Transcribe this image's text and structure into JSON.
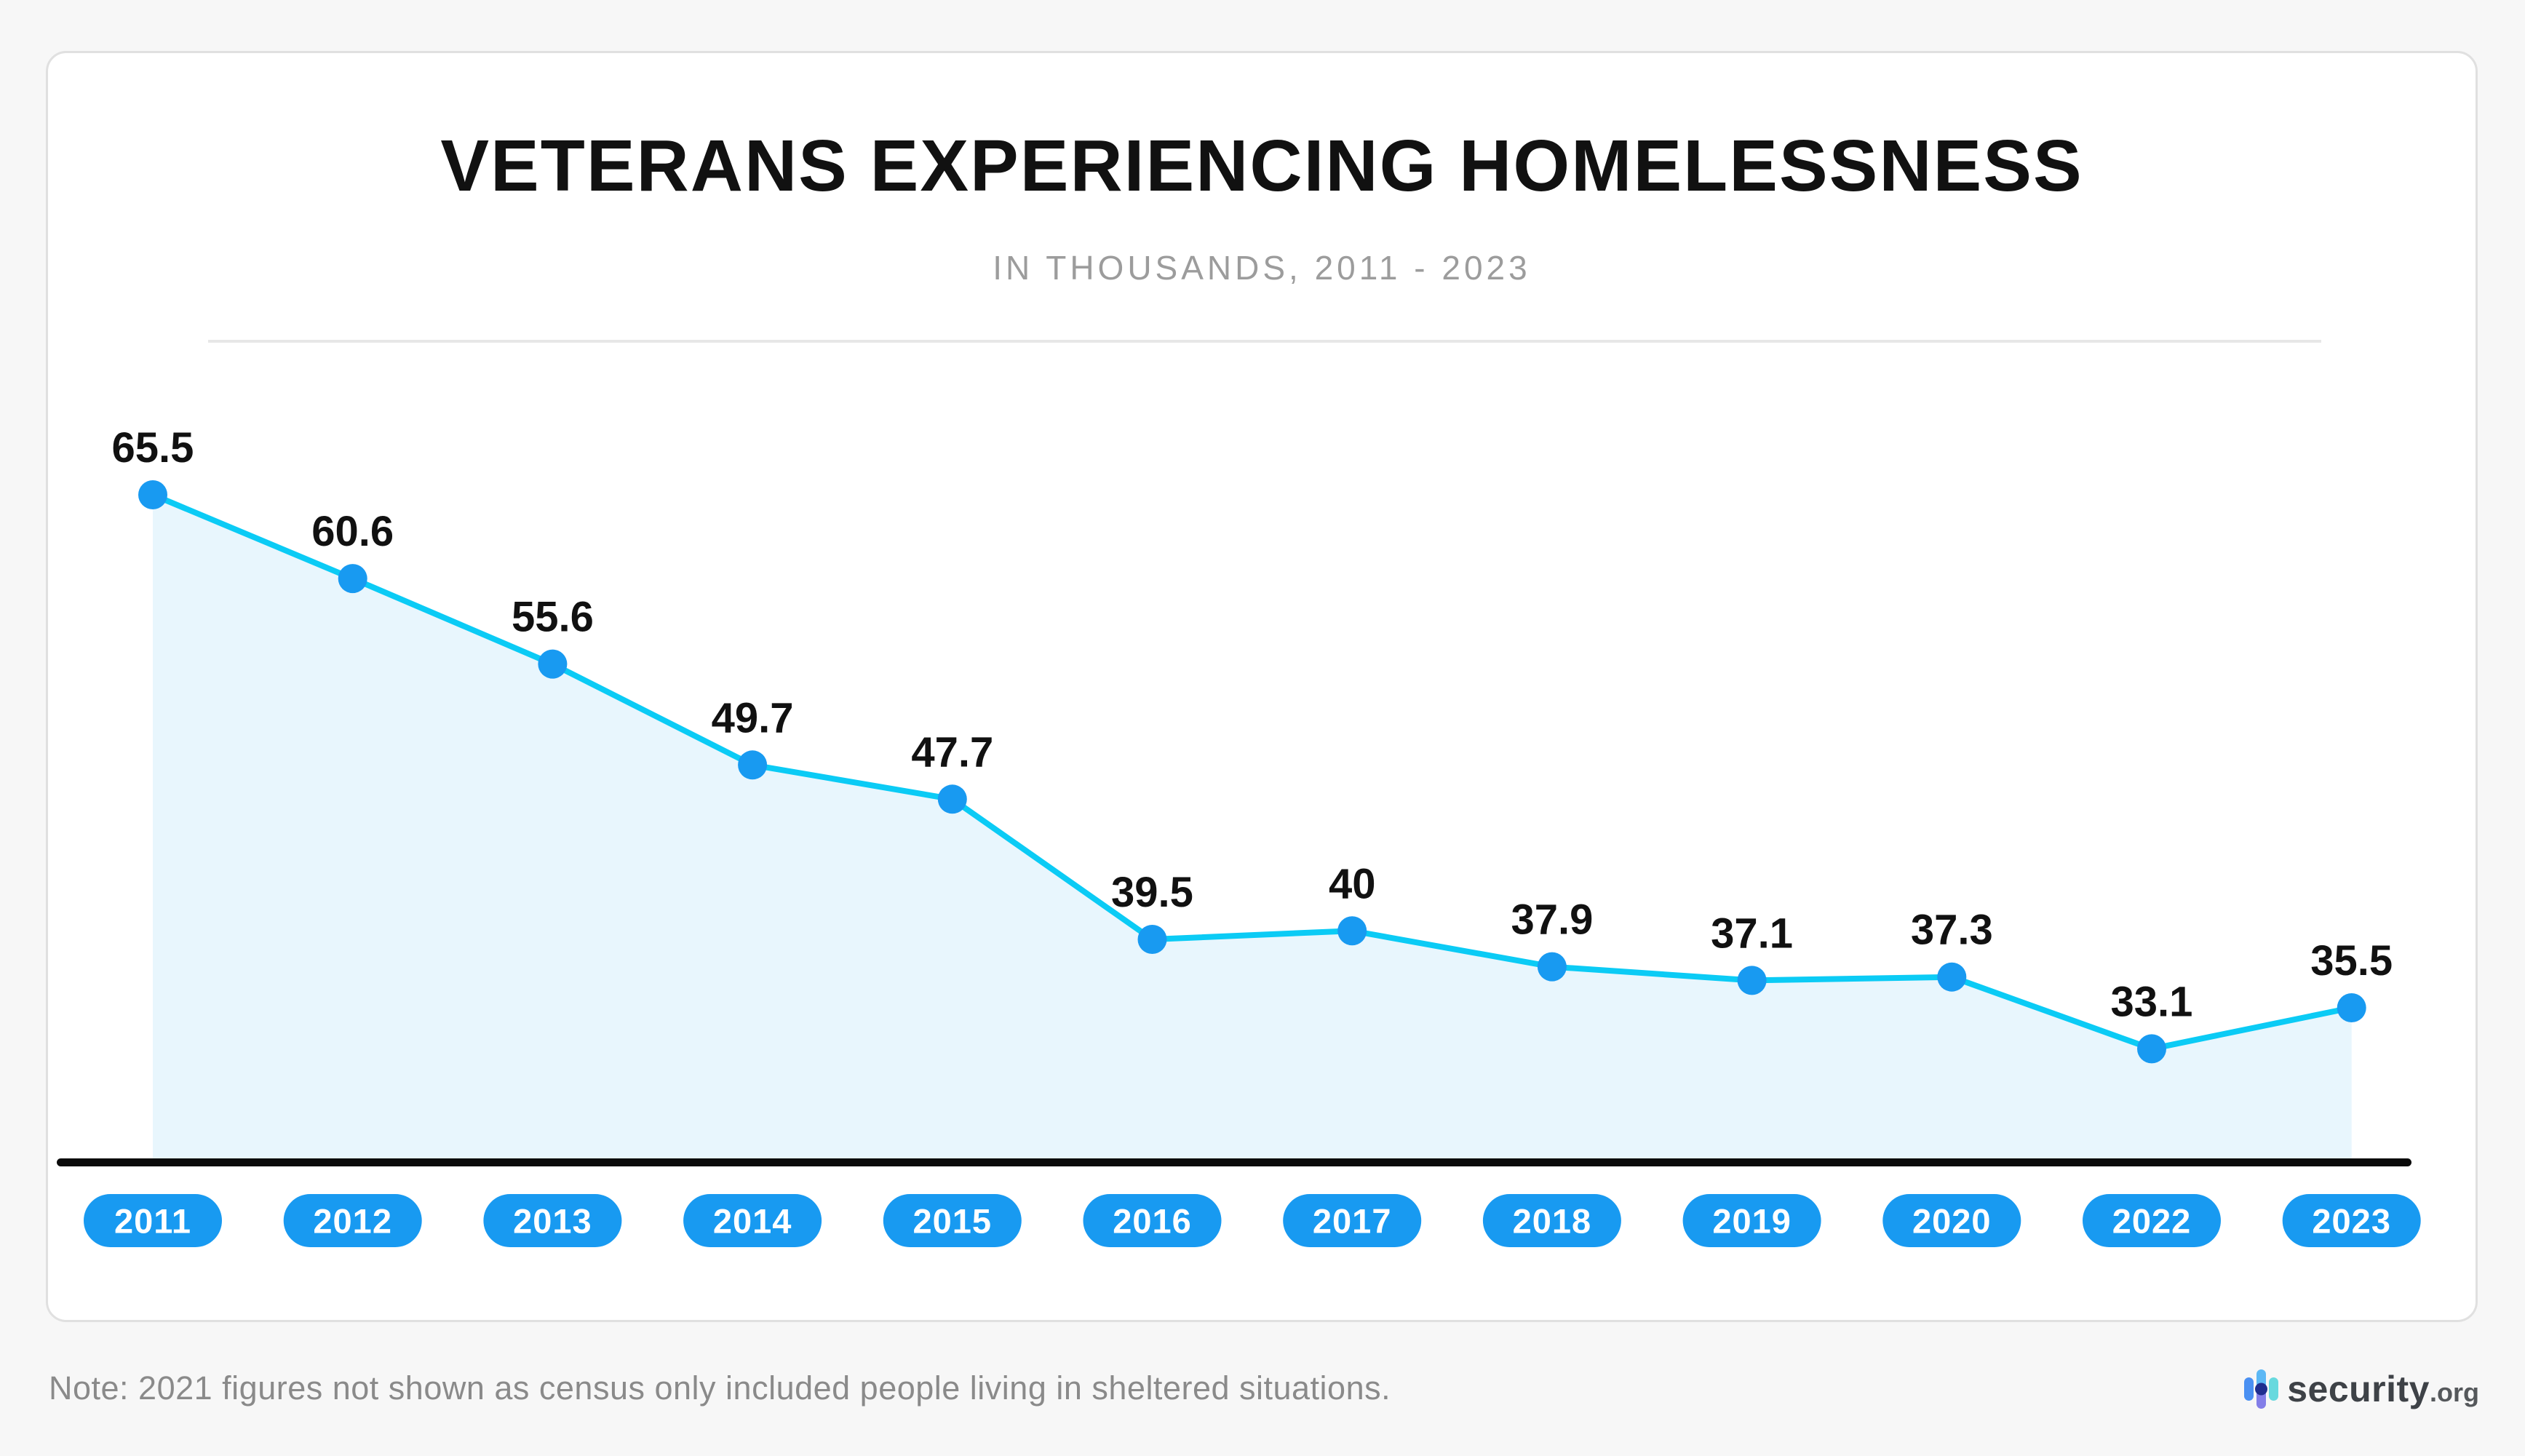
{
  "page": {
    "background": "#f7f7f7"
  },
  "header": {
    "title": "VETERANS EXPERIENCING HOMELESSNESS",
    "subtitle": "IN THOUSANDS, 2011 - 2023"
  },
  "note": "Note: 2021 figures not shown as census only included people living in sheltered situations.",
  "branding": {
    "name": "security",
    "tld": ".org"
  },
  "chart_data": {
    "type": "area",
    "title": "VETERANS EXPERIENCING HOMELESSNESS",
    "subtitle": "IN THOUSANDS, 2011 - 2023",
    "categories": [
      "2011",
      "2012",
      "2013",
      "2014",
      "2015",
      "2016",
      "2017",
      "2018",
      "2019",
      "2020",
      "2022",
      "2023"
    ],
    "values": [
      65.5,
      60.6,
      55.6,
      49.7,
      47.7,
      39.5,
      40,
      37.9,
      37.1,
      37.3,
      33.1,
      35.5
    ],
    "xlabel": "",
    "ylabel": "",
    "grid": false,
    "legend": false,
    "data_labels": true,
    "note": "2021 omitted",
    "colors": {
      "dot": "#189af1",
      "line": "#0bcbf5",
      "area": "#e8f6fd",
      "pill": "#189af1",
      "pill_text": "#ffffff",
      "label": "#111111",
      "axis": "#0b0b0b"
    }
  }
}
